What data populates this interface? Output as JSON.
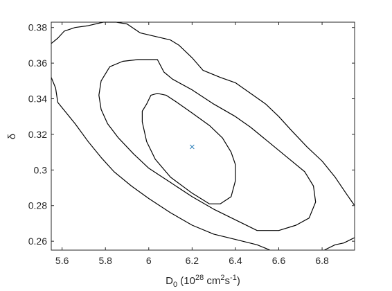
{
  "chart_data": {
    "type": "contour",
    "xlabel": {
      "base": "D",
      "base_sub": "0",
      "pre": " (10",
      "exp1": "28",
      "mid": " cm",
      "exp2": "2",
      "mid2": "s",
      "exp3": "-1",
      "post": ")"
    },
    "ylabel": "δ",
    "xlim": [
      5.55,
      6.95
    ],
    "ylim": [
      0.255,
      0.383
    ],
    "xticks": [
      5.6,
      5.8,
      6.0,
      6.2,
      6.4,
      6.6,
      6.8
    ],
    "xtick_labels": [
      "5.6",
      "5.8",
      "6",
      "6.2",
      "6.4",
      "6.6",
      "6.8"
    ],
    "yticks": [
      0.26,
      0.28,
      0.3,
      0.32,
      0.34,
      0.36,
      0.38
    ],
    "ytick_labels": [
      "0.26",
      "0.28",
      "0.3",
      "0.32",
      "0.34",
      "0.36",
      "0.38"
    ],
    "line_color": "#000000",
    "marker_color": "#1f77b4",
    "best_fit": {
      "marker": "x",
      "x": 6.2,
      "y": 0.313
    },
    "contours": [
      {
        "closed": true,
        "points": [
          [
            5.99,
            0.337
          ],
          [
            6.01,
            0.342
          ],
          [
            6.04,
            0.343
          ],
          [
            6.08,
            0.342
          ],
          [
            6.13,
            0.338
          ],
          [
            6.2,
            0.332
          ],
          [
            6.28,
            0.325
          ],
          [
            6.34,
            0.318
          ],
          [
            6.38,
            0.31
          ],
          [
            6.4,
            0.303
          ],
          [
            6.4,
            0.294
          ],
          [
            6.38,
            0.285
          ],
          [
            6.33,
            0.281
          ],
          [
            6.28,
            0.281
          ],
          [
            6.2,
            0.287
          ],
          [
            6.1,
            0.296
          ],
          [
            6.03,
            0.306
          ],
          [
            5.99,
            0.316
          ],
          [
            5.97,
            0.327
          ],
          [
            5.97,
            0.333
          ]
        ]
      },
      {
        "closed": true,
        "points": [
          [
            5.77,
            0.342
          ],
          [
            5.78,
            0.35
          ],
          [
            5.82,
            0.358
          ],
          [
            5.88,
            0.361
          ],
          [
            5.95,
            0.362
          ],
          [
            6.04,
            0.362
          ],
          [
            6.07,
            0.355
          ],
          [
            6.11,
            0.351
          ],
          [
            6.2,
            0.345
          ],
          [
            6.3,
            0.337
          ],
          [
            6.4,
            0.33
          ],
          [
            6.47,
            0.324
          ],
          [
            6.55,
            0.316
          ],
          [
            6.64,
            0.307
          ],
          [
            6.72,
            0.299
          ],
          [
            6.76,
            0.291
          ],
          [
            6.77,
            0.282
          ],
          [
            6.74,
            0.273
          ],
          [
            6.68,
            0.269
          ],
          [
            6.6,
            0.266
          ],
          [
            6.5,
            0.266
          ],
          [
            6.4,
            0.272
          ],
          [
            6.3,
            0.278
          ],
          [
            6.2,
            0.285
          ],
          [
            6.1,
            0.293
          ],
          [
            6.0,
            0.301
          ],
          [
            5.93,
            0.309
          ],
          [
            5.86,
            0.318
          ],
          [
            5.81,
            0.326
          ],
          [
            5.78,
            0.334
          ]
        ]
      },
      {
        "closed": false,
        "points": [
          [
            5.55,
            0.371
          ],
          [
            5.58,
            0.374
          ],
          [
            5.61,
            0.378
          ],
          [
            5.66,
            0.38
          ],
          [
            5.72,
            0.381
          ],
          [
            5.79,
            0.383
          ],
          [
            5.85,
            0.383
          ],
          [
            5.9,
            0.382
          ],
          [
            5.96,
            0.377
          ],
          [
            6.03,
            0.375
          ],
          [
            6.1,
            0.373
          ],
          [
            6.14,
            0.37
          ],
          [
            6.2,
            0.363
          ],
          [
            6.25,
            0.356
          ],
          [
            6.33,
            0.352
          ],
          [
            6.4,
            0.349
          ],
          [
            6.47,
            0.343
          ],
          [
            6.54,
            0.337
          ],
          [
            6.6,
            0.33
          ],
          [
            6.66,
            0.322
          ],
          [
            6.73,
            0.313
          ],
          [
            6.8,
            0.305
          ],
          [
            6.86,
            0.296
          ],
          [
            6.91,
            0.287
          ],
          [
            6.95,
            0.28
          ]
        ]
      },
      {
        "closed": false,
        "points": [
          [
            5.55,
            0.352
          ],
          [
            5.57,
            0.346
          ],
          [
            5.58,
            0.338
          ],
          [
            5.62,
            0.332
          ],
          [
            5.66,
            0.326
          ],
          [
            5.72,
            0.316
          ],
          [
            5.78,
            0.307
          ],
          [
            5.84,
            0.299
          ],
          [
            5.92,
            0.291
          ],
          [
            6.0,
            0.284
          ],
          [
            6.1,
            0.276
          ],
          [
            6.2,
            0.269
          ],
          [
            6.3,
            0.264
          ],
          [
            6.4,
            0.261
          ],
          [
            6.5,
            0.258
          ],
          [
            6.56,
            0.255
          ]
        ]
      },
      {
        "closed": false,
        "points": [
          [
            6.81,
            0.255
          ],
          [
            6.86,
            0.258
          ],
          [
            6.9,
            0.259
          ],
          [
            6.95,
            0.262
          ]
        ]
      }
    ]
  }
}
